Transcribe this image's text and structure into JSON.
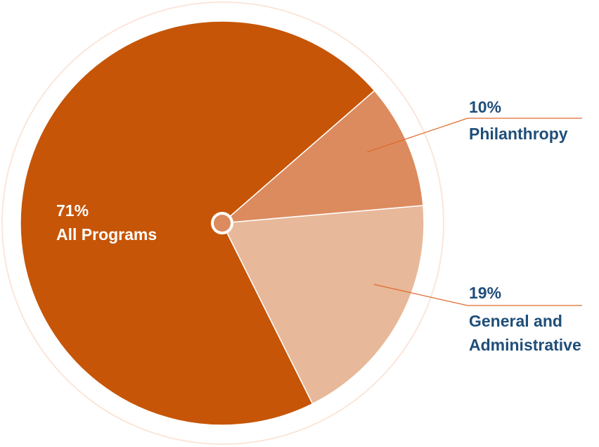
{
  "chart_data": {
    "type": "pie",
    "slices": [
      {
        "percent_label": "71%",
        "label": "All Programs",
        "value": 71,
        "color": "#c65508"
      },
      {
        "percent_label": "10%",
        "label": "Philanthropy",
        "value": 10,
        "color": "#dc8b5e"
      },
      {
        "percent_label": "19%",
        "label": "General and Administrative",
        "label_lines": [
          "General and",
          "Administrative"
        ],
        "value": 19,
        "color": "#e7b899"
      }
    ],
    "label_color": "#1f4e79",
    "inner_label_color": "#ffffff",
    "ring_color": "#fbe6da",
    "leader_color": "#e06a2e",
    "center_dot_color": "#dc8b5e"
  }
}
